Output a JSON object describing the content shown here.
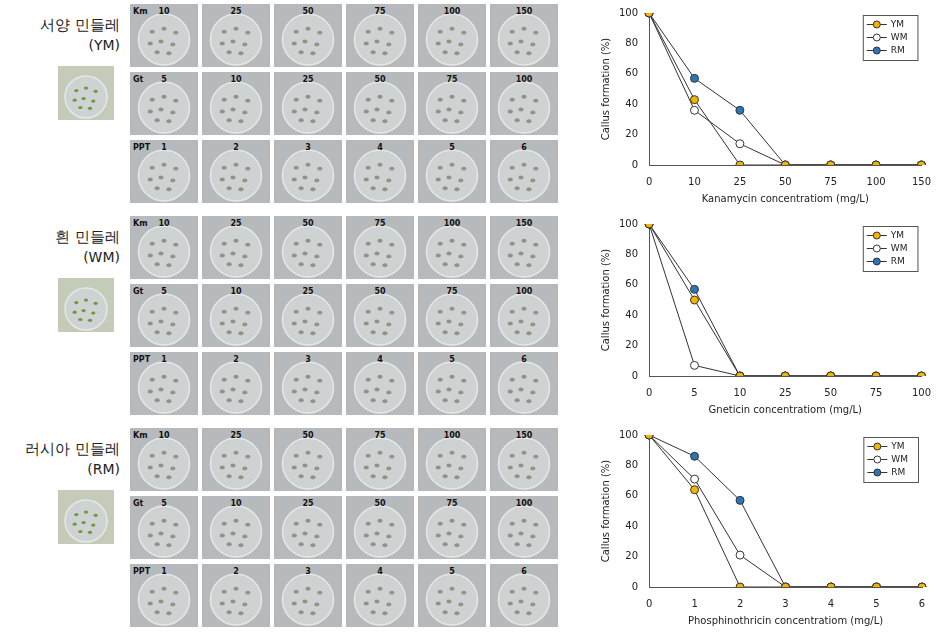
{
  "plates": {
    "groups": [
      {
        "name": "서양 민들레",
        "code": "(YM)"
      },
      {
        "name": "흰 민들레",
        "code": "(WM)"
      },
      {
        "name": "러시아 민들레",
        "code": "(RM)"
      }
    ],
    "rows": [
      {
        "label": "Km",
        "concentrations": [
          10,
          25,
          50,
          75,
          100,
          150
        ]
      },
      {
        "label": "Gt",
        "concentrations": [
          5,
          10,
          25,
          50,
          75,
          100
        ]
      },
      {
        "label": "PPT",
        "concentrations": [
          1,
          2,
          3,
          4,
          5,
          6
        ]
      }
    ]
  },
  "chart_data": [
    {
      "type": "line",
      "x_label": "Kanamycin concentratiom (mg/L)",
      "y_label": "Callus formation (%)",
      "categories": [
        0,
        10,
        25,
        50,
        75,
        100,
        150
      ],
      "series": [
        {
          "name": "YM",
          "color": "#f2b600",
          "marker": "circle",
          "values": [
            100,
            43,
            0,
            0,
            0,
            0,
            0
          ]
        },
        {
          "name": "WM",
          "color": "#ffffff",
          "marker": "circle",
          "values": [
            100,
            36,
            14,
            0,
            0,
            0,
            0
          ]
        },
        {
          "name": "RM",
          "color": "#2e75b6",
          "marker": "circle",
          "values": [
            100,
            57,
            36,
            0,
            0,
            0,
            0
          ]
        }
      ],
      "ylim": [
        0,
        100
      ],
      "yticks": [
        0,
        20,
        40,
        60,
        80,
        100
      ],
      "grid": false,
      "legend": "upper right"
    },
    {
      "type": "line",
      "x_label": "Gneticin concentratiom (mg/L)",
      "y_label": "Callus formation (%)",
      "categories": [
        0,
        5,
        10,
        25,
        50,
        75,
        100
      ],
      "series": [
        {
          "name": "YM",
          "color": "#f2b600",
          "marker": "circle",
          "values": [
            100,
            50,
            0,
            0,
            0,
            0,
            0
          ]
        },
        {
          "name": "WM",
          "color": "#ffffff",
          "marker": "circle",
          "values": [
            100,
            7,
            0,
            0,
            0,
            0,
            0
          ]
        },
        {
          "name": "RM",
          "color": "#2e75b6",
          "marker": "circle",
          "values": [
            100,
            57,
            0,
            0,
            0,
            0,
            0
          ]
        }
      ],
      "ylim": [
        0,
        100
      ],
      "yticks": [
        0,
        20,
        40,
        60,
        80,
        100
      ],
      "grid": false,
      "legend": "upper right"
    },
    {
      "type": "line",
      "x_label": "Phosphinothricin concentratiom (mg/L)",
      "y_label": "Callus formation (%)",
      "categories": [
        0,
        1,
        2,
        3,
        4,
        5,
        6
      ],
      "series": [
        {
          "name": "YM",
          "color": "#f2b600",
          "marker": "circle",
          "values": [
            100,
            64,
            0,
            0,
            0,
            0,
            0
          ]
        },
        {
          "name": "WM",
          "color": "#ffffff",
          "marker": "circle",
          "values": [
            100,
            71,
            21,
            0,
            0,
            0,
            0
          ]
        },
        {
          "name": "RM",
          "color": "#2e75b6",
          "marker": "circle",
          "values": [
            100,
            86,
            57,
            0,
            0,
            0,
            0
          ]
        }
      ],
      "ylim": [
        0,
        100
      ],
      "yticks": [
        0,
        20,
        40,
        60,
        80,
        100
      ],
      "grid": false,
      "legend": "upper right"
    }
  ]
}
